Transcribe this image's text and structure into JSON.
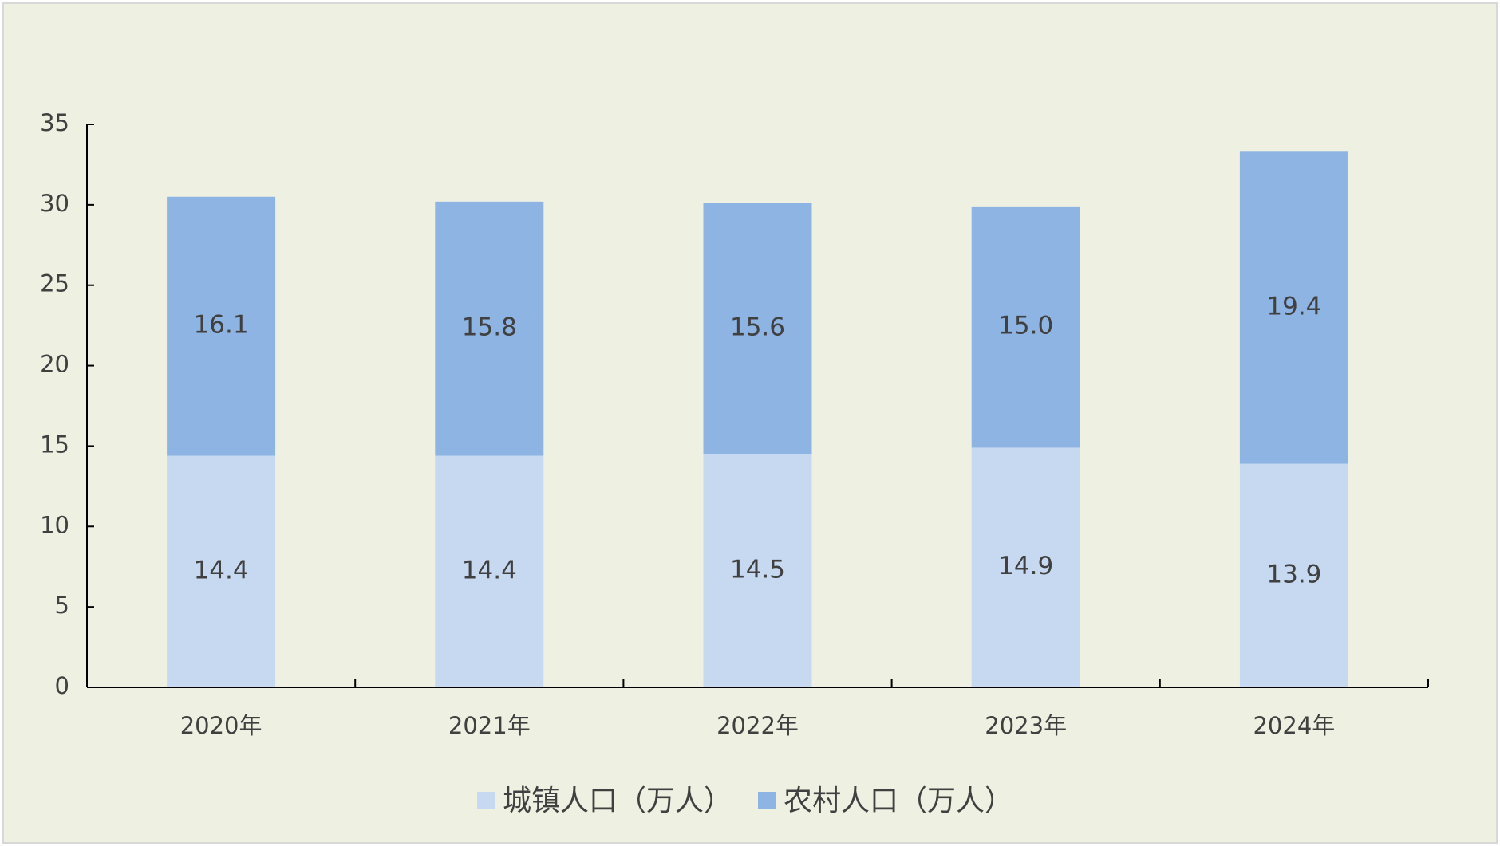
{
  "chart_data": {
    "type": "stacked_bar",
    "categories": [
      "2020年",
      "2021年",
      "2022年",
      "2023年",
      "2024年"
    ],
    "series": [
      {
        "name": "城镇人口（万人）",
        "color": "#c6d9f1",
        "values": [
          14.4,
          14.4,
          14.5,
          14.9,
          13.9
        ]
      },
      {
        "name": "农村人口（万人）",
        "color": "#8eb4e3",
        "values": [
          16.1,
          15.8,
          15.6,
          15.0,
          19.4
        ],
        "value_labels": [
          "16.1",
          "15.8",
          "15.6",
          "15.0",
          "19.4"
        ]
      }
    ],
    "ylim": [
      0,
      35
    ],
    "yticks": [
      0,
      5,
      10,
      15,
      20,
      25,
      30,
      35
    ],
    "grid": false
  }
}
